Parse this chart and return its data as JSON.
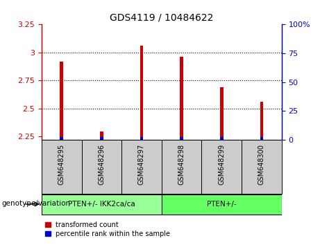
{
  "title": "GDS4119 / 10484622",
  "samples": [
    "GSM648295",
    "GSM648296",
    "GSM648297",
    "GSM648298",
    "GSM648299",
    "GSM648300"
  ],
  "transformed_count": [
    2.92,
    2.29,
    3.06,
    2.96,
    2.69,
    2.56
  ],
  "bar_bottom": 2.22,
  "ylim": [
    2.22,
    3.25
  ],
  "yticks": [
    2.25,
    2.5,
    2.75,
    3.0,
    3.25
  ],
  "ytick_labels": [
    "2.25",
    "2.5",
    "2.75",
    "3",
    "3.25"
  ],
  "right_yticks_pct": [
    0,
    25,
    50,
    75,
    100
  ],
  "right_ytick_labels": [
    "0",
    "25",
    "50",
    "75",
    "100%"
  ],
  "left_color": "#cc0000",
  "blue_color": "#0000cc",
  "red_color": "#cc0000",
  "blue_bar_height": 0.025,
  "bar_width": 0.08,
  "group1_label": "PTEN+/- IKK2ca/ca",
  "group2_label": "PTEN+/-",
  "group1_indices": [
    0,
    1,
    2
  ],
  "group2_indices": [
    3,
    4,
    5
  ],
  "group1_color": "#99ff99",
  "group2_color": "#66ff66",
  "sample_bg_color": "#cccccc",
  "genotype_label": "genotype/variation",
  "legend1": "transformed count",
  "legend2": "percentile rank within the sample"
}
